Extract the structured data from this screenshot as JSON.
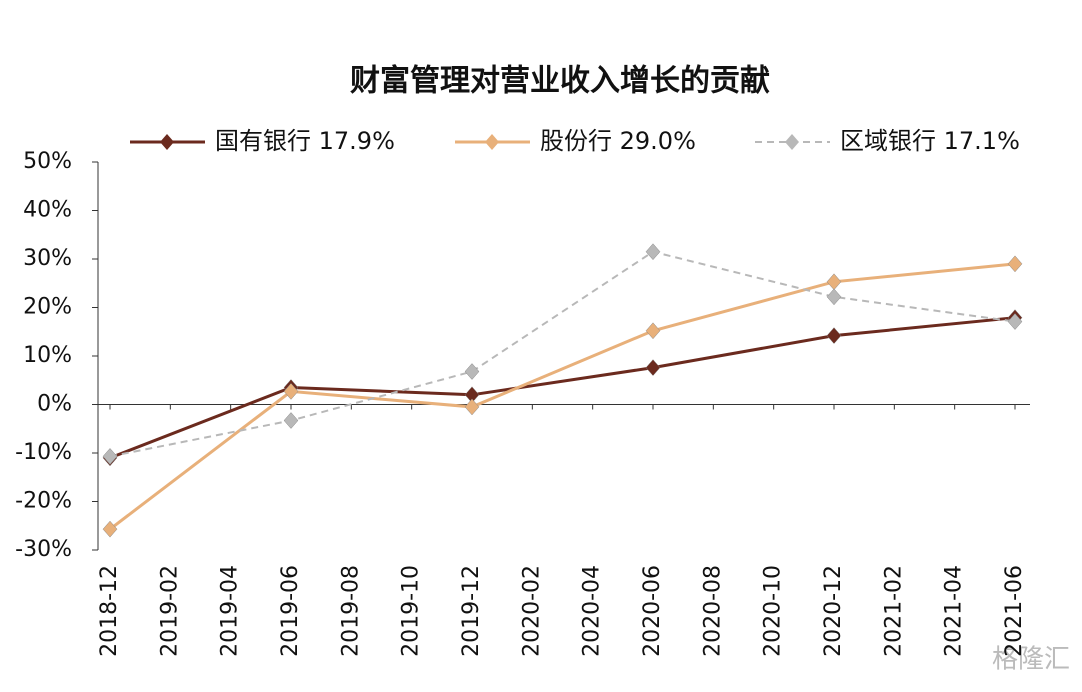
{
  "chart_data": {
    "type": "line",
    "title": "财富管理对营业收入增长的贡献",
    "x": [
      "2018-12",
      "2019-06",
      "2019-12",
      "2020-06",
      "2020-12",
      "2021-06"
    ],
    "xticks": [
      "2018-12",
      "2019-02",
      "2019-04",
      "2019-06",
      "2019-08",
      "2019-10",
      "2019-12",
      "2020-02",
      "2020-04",
      "2020-06",
      "2020-08",
      "2020-10",
      "2020-12",
      "2021-02",
      "2021-04",
      "2021-06"
    ],
    "series": [
      {
        "name": "国有银行  17.9%",
        "color": "#6b2a1e",
        "dashed": false,
        "values": [
          -11,
          3.5,
          2,
          7.6,
          14.2,
          17.9
        ]
      },
      {
        "name": "股份行  29.0%",
        "color": "#e8b07a",
        "dashed": false,
        "values": [
          -25.7,
          2.7,
          -0.5,
          15.2,
          25.3,
          29
        ]
      },
      {
        "name": "区域银行  17.1%",
        "color": "#b8b8b8",
        "dashed": true,
        "values": [
          -10.7,
          -3.3,
          6.8,
          31.5,
          22.2,
          17.1
        ]
      }
    ],
    "ylim": [
      -30,
      50
    ],
    "yticks": [
      {
        "value": -30,
        "label": "-30%"
      },
      {
        "value": -20,
        "label": "-20%"
      },
      {
        "value": -10,
        "label": "-10%"
      },
      {
        "value": 0,
        "label": "0%"
      },
      {
        "value": 10,
        "label": "10%"
      },
      {
        "value": 20,
        "label": "20%"
      },
      {
        "value": 30,
        "label": "30%"
      },
      {
        "value": 40,
        "label": "40%"
      },
      {
        "value": 50,
        "label": "50%"
      }
    ],
    "watermark": "格隆汇"
  }
}
